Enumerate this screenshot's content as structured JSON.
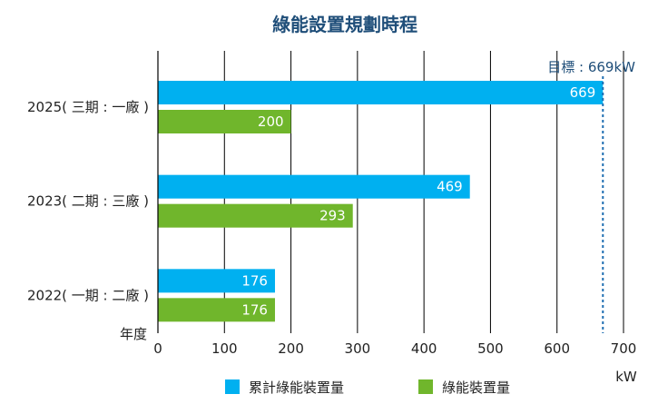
{
  "chart_data": {
    "type": "bar",
    "orientation": "horizontal",
    "title": "綠能設置規劃時程",
    "ylabel": "年度",
    "xlabel": "kW",
    "categories": [
      "2025( 三期 : 一廠 )",
      "2023( 二期 : 三廠 )",
      "2022( 一期 : 二廠 )"
    ],
    "series": [
      {
        "name": "累計綠能裝置量",
        "color": "#00b0f0",
        "values": [
          669,
          469,
          176
        ]
      },
      {
        "name": "綠能裝置量",
        "color": "#70b62c",
        "values": [
          200,
          293,
          176
        ]
      }
    ],
    "xlim": [
      0,
      700
    ],
    "xticks": [
      0,
      100,
      200,
      300,
      400,
      500,
      600,
      700
    ],
    "grid": true,
    "legend_position": "bottom",
    "target": {
      "label": "目標 : 669kW",
      "value": 669,
      "color": "#1f6fb2"
    }
  }
}
